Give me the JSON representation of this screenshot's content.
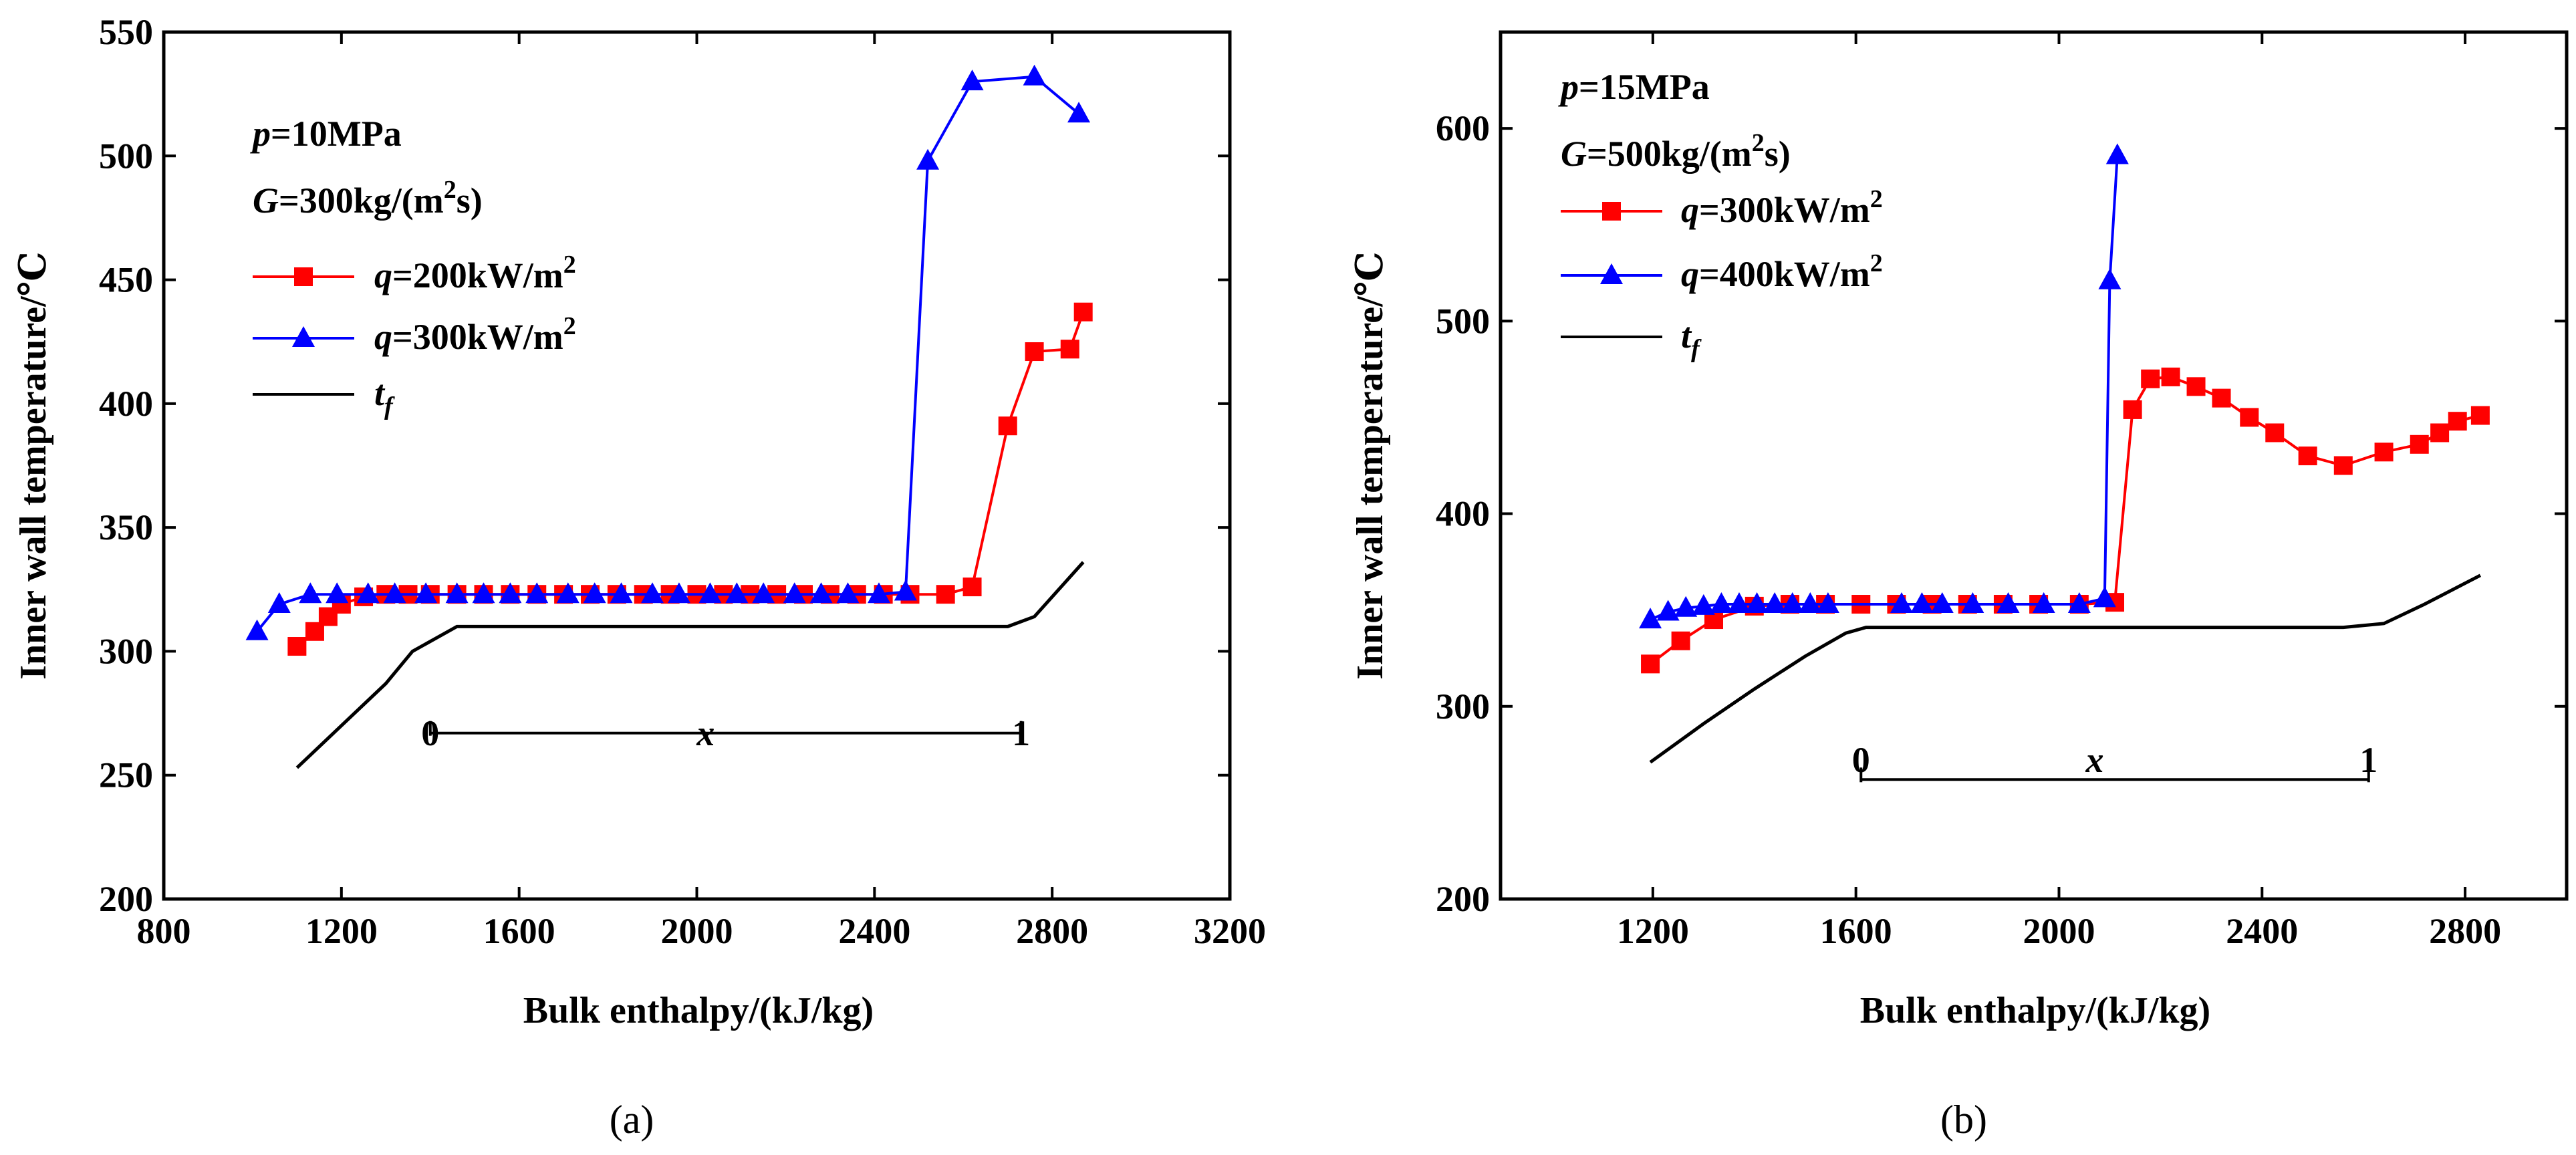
{
  "colors": {
    "red": "#ff0000",
    "blue": "#0000ff",
    "black": "#000000"
  },
  "chart_data": [
    {
      "type": "line",
      "panel_label": "(a)",
      "xlabel": "Bulk enthalpy/(kJ/kg)",
      "ylabel": "Inner wall temperature/℃",
      "xlim": [
        800,
        3200
      ],
      "ylim": [
        200,
        550
      ],
      "xticks": [
        800,
        1200,
        1600,
        2000,
        2400,
        2800,
        3200
      ],
      "yticks": [
        200,
        250,
        300,
        350,
        400,
        450,
        500,
        550
      ],
      "annotations": [
        {
          "var": "p",
          "text": "=10MPa"
        },
        {
          "var": "G",
          "text": "=300kg/(m",
          "sup": "2",
          "tail": "s)"
        }
      ],
      "legend_position": "top-left",
      "series": [
        {
          "name": "q=200kW/m2",
          "var": "q",
          "label": "=200kW/m",
          "sup": "2",
          "color": "#ff0000",
          "marker": "square",
          "x": [
            1100,
            1140,
            1170,
            1200,
            1250,
            1300,
            1350,
            1400,
            1460,
            1520,
            1580,
            1640,
            1700,
            1760,
            1820,
            1880,
            1940,
            2000,
            2060,
            2120,
            2180,
            2240,
            2300,
            2360,
            2420,
            2480,
            2560,
            2620,
            2700,
            2760,
            2840,
            2870
          ],
          "y": [
            302,
            308,
            314,
            319,
            322,
            323,
            323,
            323,
            323,
            323,
            323,
            323,
            323,
            323,
            323,
            323,
            323,
            323,
            323,
            323,
            323,
            323,
            323,
            323,
            323,
            323,
            323,
            326,
            391,
            421,
            422,
            437
          ]
        },
        {
          "name": "q=300kW/m2",
          "var": "q",
          "label": "=300kW/m",
          "sup": "2",
          "color": "#0000ff",
          "marker": "triangle",
          "x": [
            1010,
            1060,
            1130,
            1190,
            1260,
            1320,
            1390,
            1460,
            1520,
            1580,
            1640,
            1710,
            1770,
            1830,
            1900,
            1960,
            2030,
            2090,
            2150,
            2220,
            2280,
            2340,
            2410,
            2470,
            2520,
            2620,
            2760,
            2860
          ],
          "y": [
            308,
            319,
            323,
            323,
            323,
            323,
            323,
            323,
            323,
            323,
            323,
            323,
            323,
            323,
            323,
            323,
            323,
            323,
            323,
            323,
            323,
            323,
            323,
            324,
            498,
            530,
            532,
            517
          ]
        },
        {
          "name": "tf",
          "var": "t",
          "sub": "f",
          "color": "#000000",
          "marker": "none",
          "x": [
            1100,
            1200,
            1300,
            1360,
            1460,
            1600,
            2000,
            2400,
            2700,
            2760,
            2870
          ],
          "y": [
            253,
            270,
            287,
            300,
            310,
            310,
            310,
            310,
            310,
            314,
            336
          ]
        }
      ],
      "quality_bar": {
        "start_label": "0",
        "mid_label": "x",
        "end_label": "1",
        "x_start": 1400,
        "x_end": 2730,
        "y": 267
      }
    },
    {
      "type": "line",
      "panel_label": "(b)",
      "xlabel": "Bulk enthalpy/(kJ/kg)",
      "ylabel": "Inner wall temperature/℃",
      "xlim": [
        900,
        3000
      ],
      "ylim": [
        200,
        650
      ],
      "xticks": [
        1200,
        1600,
        2000,
        2400,
        2800
      ],
      "yticks": [
        200,
        300,
        400,
        500,
        600
      ],
      "annotations": [
        {
          "var": "p",
          "text": "=15MPa"
        },
        {
          "var": "G",
          "text": "=500kg/(m",
          "sup": "2",
          "tail": "s)"
        }
      ],
      "legend_position": "top-left",
      "series": [
        {
          "name": "q=300kW/m2",
          "var": "q",
          "label": "=300kW/m",
          "sup": "2",
          "color": "#ff0000",
          "marker": "square",
          "x": [
            1195,
            1255,
            1320,
            1400,
            1470,
            1540,
            1610,
            1680,
            1750,
            1820,
            1890,
            1960,
            2040,
            2110,
            2145,
            2180,
            2220,
            2270,
            2320,
            2375,
            2425,
            2490,
            2560,
            2640,
            2710,
            2750,
            2785,
            2830
          ],
          "y": [
            322,
            334,
            345,
            352,
            353,
            353,
            353,
            353,
            353,
            353,
            353,
            353,
            353,
            354,
            454,
            470,
            471,
            466,
            460,
            450,
            442,
            430,
            425,
            432,
            436,
            442,
            448,
            451
          ]
        },
        {
          "name": "q=400kW/m2",
          "var": "q",
          "label": "=400kW/m",
          "sup": "2",
          "color": "#0000ff",
          "marker": "triangle",
          "x": [
            1195,
            1230,
            1265,
            1300,
            1335,
            1370,
            1405,
            1440,
            1475,
            1510,
            1545,
            1690,
            1730,
            1770,
            1830,
            1900,
            1970,
            2040,
            2090,
            2100,
            2115
          ],
          "y": [
            345,
            349,
            351,
            352,
            353,
            353,
            353,
            353,
            353,
            353,
            353,
            353,
            353,
            353,
            353,
            353,
            353,
            353,
            356,
            521,
            586
          ]
        },
        {
          "name": "tf",
          "var": "t",
          "sub": "f",
          "color": "#000000",
          "marker": "none",
          "x": [
            1195,
            1300,
            1400,
            1500,
            1580,
            1620,
            2000,
            2400,
            2560,
            2640,
            2720,
            2830
          ],
          "y": [
            271,
            291,
            309,
            326,
            338,
            341,
            341,
            341,
            341,
            343,
            353,
            368
          ]
        }
      ],
      "quality_bar": {
        "start_label": "0",
        "mid_label": "x",
        "end_label": "1",
        "x_start": 1610,
        "x_end": 2610,
        "y": 262
      }
    }
  ]
}
